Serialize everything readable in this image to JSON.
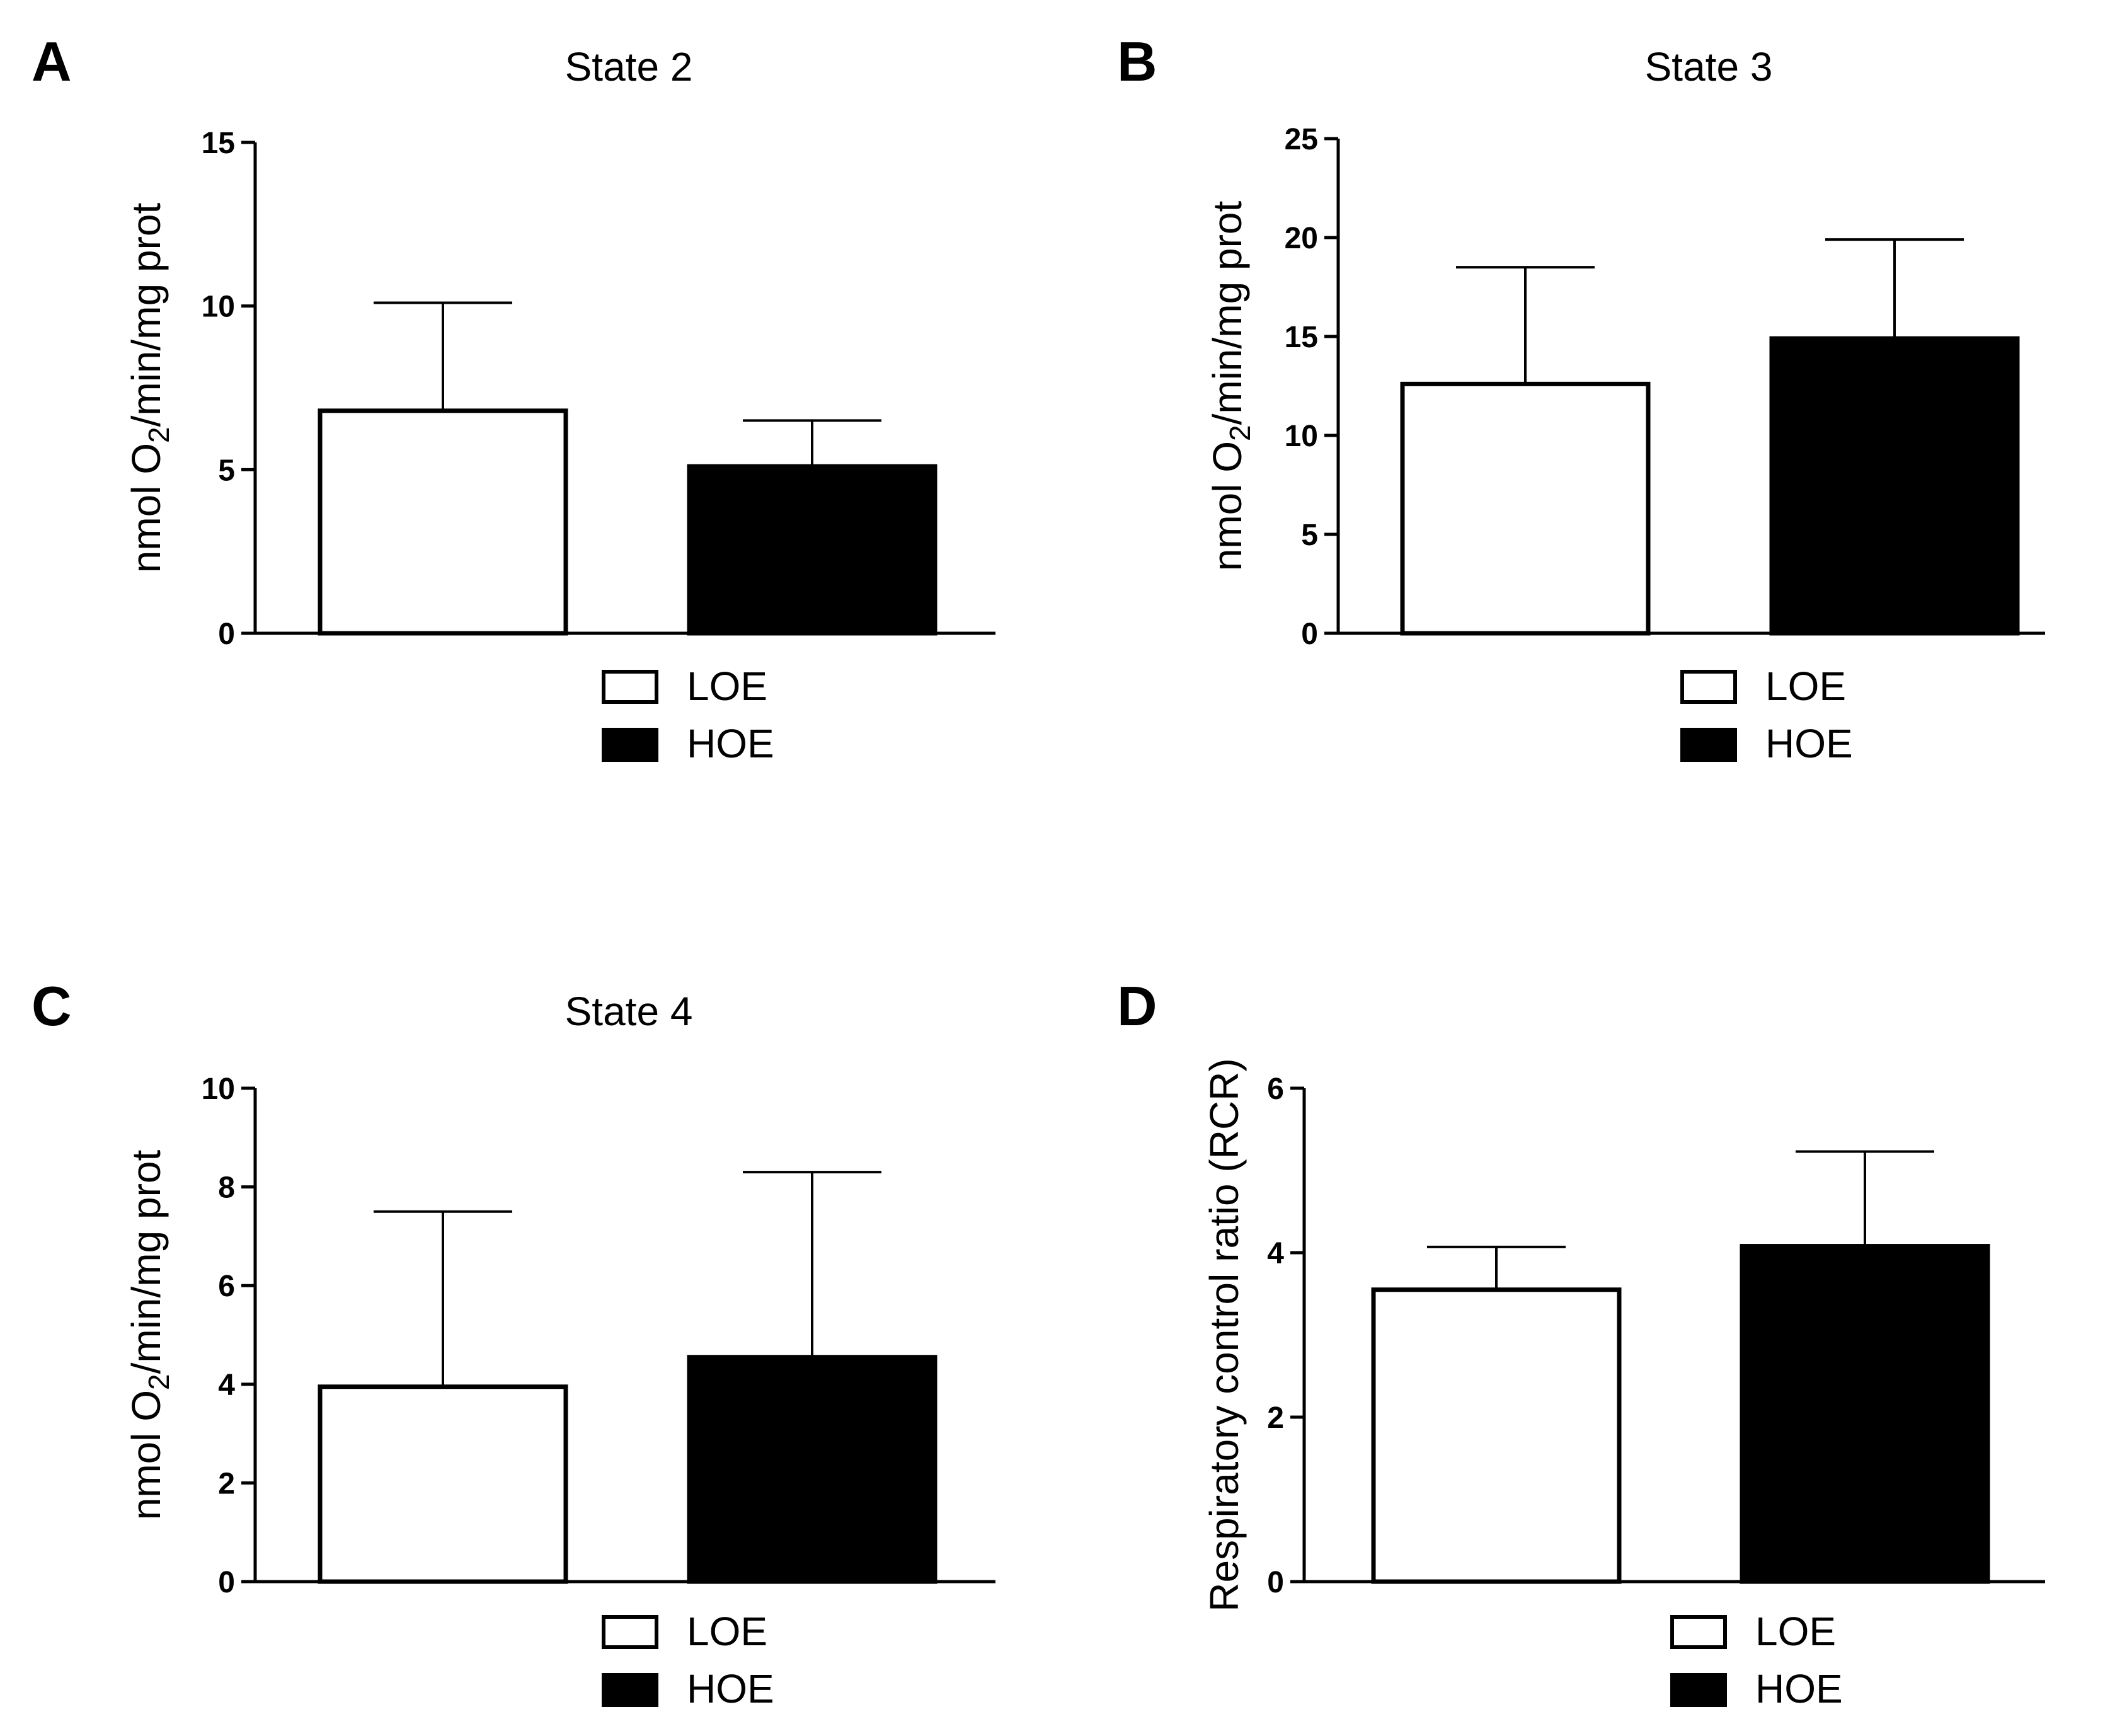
{
  "colors": {
    "loe_fill": "#ffffff",
    "hoe_fill": "#000000",
    "stroke": "#000000"
  },
  "legend": {
    "loe_label": "LOE",
    "hoe_label": "HOE"
  },
  "chart_data": [
    {
      "panel": "A",
      "type": "bar",
      "title": "State 2",
      "ylabel": "nmol O2/min/mg prot",
      "ylabel_parts": {
        "pre": "nmol O",
        "sub": "2",
        "post": "/min/mg prot"
      },
      "categories": [
        "LOE",
        "HOE"
      ],
      "values": [
        6.8,
        5.1
      ],
      "errors": [
        3.3,
        1.4
      ],
      "ylim": [
        0,
        15
      ],
      "yticks": [
        0,
        5,
        10,
        15
      ]
    },
    {
      "panel": "B",
      "type": "bar",
      "title": "State 3",
      "ylabel": "nmol O2/min/mg prot",
      "ylabel_parts": {
        "pre": "nmol O",
        "sub": "2",
        "post": "/min/mg prot"
      },
      "categories": [
        "LOE",
        "HOE"
      ],
      "values": [
        12.6,
        14.9
      ],
      "errors": [
        5.9,
        5.0
      ],
      "ylim": [
        0,
        25
      ],
      "yticks": [
        0,
        5,
        10,
        15,
        20,
        25
      ]
    },
    {
      "panel": "C",
      "type": "bar",
      "title": "State 4",
      "ylabel": "nmol O2/min/mg prot",
      "ylabel_parts": {
        "pre": "nmol O",
        "sub": "2",
        "post": "/min/mg prot"
      },
      "categories": [
        "LOE",
        "HOE"
      ],
      "values": [
        3.95,
        4.55
      ],
      "errors": [
        3.55,
        3.75
      ],
      "ylim": [
        0,
        10
      ],
      "yticks": [
        0,
        2,
        4,
        6,
        8,
        10
      ]
    },
    {
      "panel": "D",
      "type": "bar",
      "title": "",
      "ylabel": "Respiratory control ratio (RCR)",
      "ylabel_parts": {
        "pre": "Respiratory control ratio (RCR)",
        "sub": "",
        "post": ""
      },
      "categories": [
        "LOE",
        "HOE"
      ],
      "values": [
        3.55,
        4.08
      ],
      "errors": [
        0.52,
        1.15
      ],
      "ylim": [
        0,
        6
      ],
      "yticks": [
        0,
        2,
        4,
        6
      ]
    }
  ]
}
